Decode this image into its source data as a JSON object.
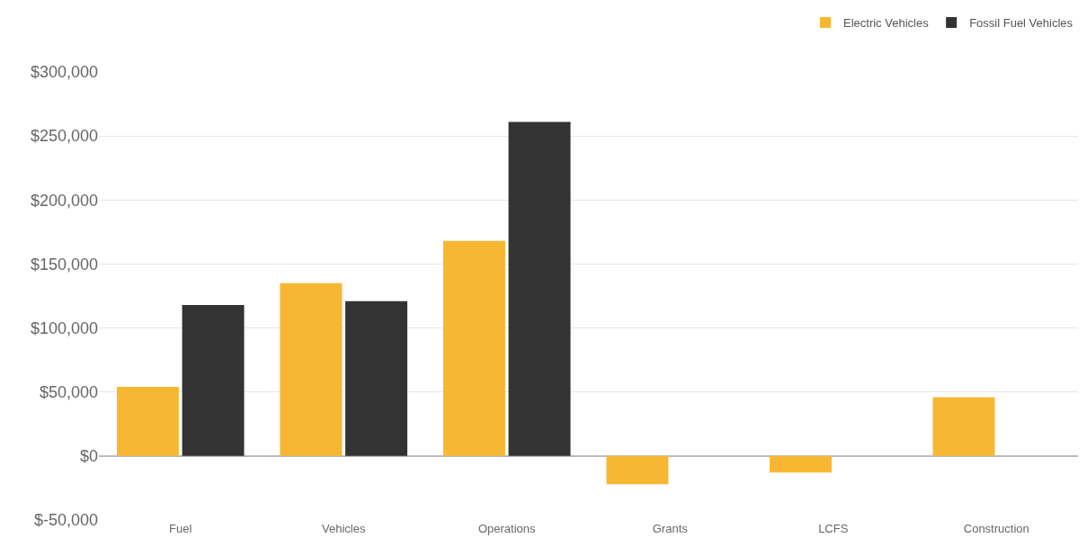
{
  "chart_data": {
    "type": "bar",
    "categories": [
      "Fuel",
      "Vehicles",
      "Operations",
      "Grants",
      "LCFS",
      "Construction"
    ],
    "series": [
      {
        "name": "Electric Vehicles",
        "color": "#f8b733",
        "values": [
          54000,
          135000,
          168000,
          -22000,
          -13000,
          46000
        ]
      },
      {
        "name": "Fossil Fuel Vehicles",
        "color": "#333333",
        "values": [
          118000,
          121000,
          261000,
          null,
          null,
          null
        ]
      }
    ],
    "ylim": [
      -50000,
      300000
    ],
    "yticks": [
      {
        "value": -50000,
        "label": "$-50,000"
      },
      {
        "value": 0,
        "label": "$0"
      },
      {
        "value": 50000,
        "label": "$50,000"
      },
      {
        "value": 100000,
        "label": "$100,000"
      },
      {
        "value": 150000,
        "label": "$150,000"
      },
      {
        "value": 200000,
        "label": "$200,000"
      },
      {
        "value": 250000,
        "label": "$250,000"
      },
      {
        "value": 300000,
        "label": "$300,000"
      }
    ],
    "grid": "y",
    "legend": "top right"
  }
}
